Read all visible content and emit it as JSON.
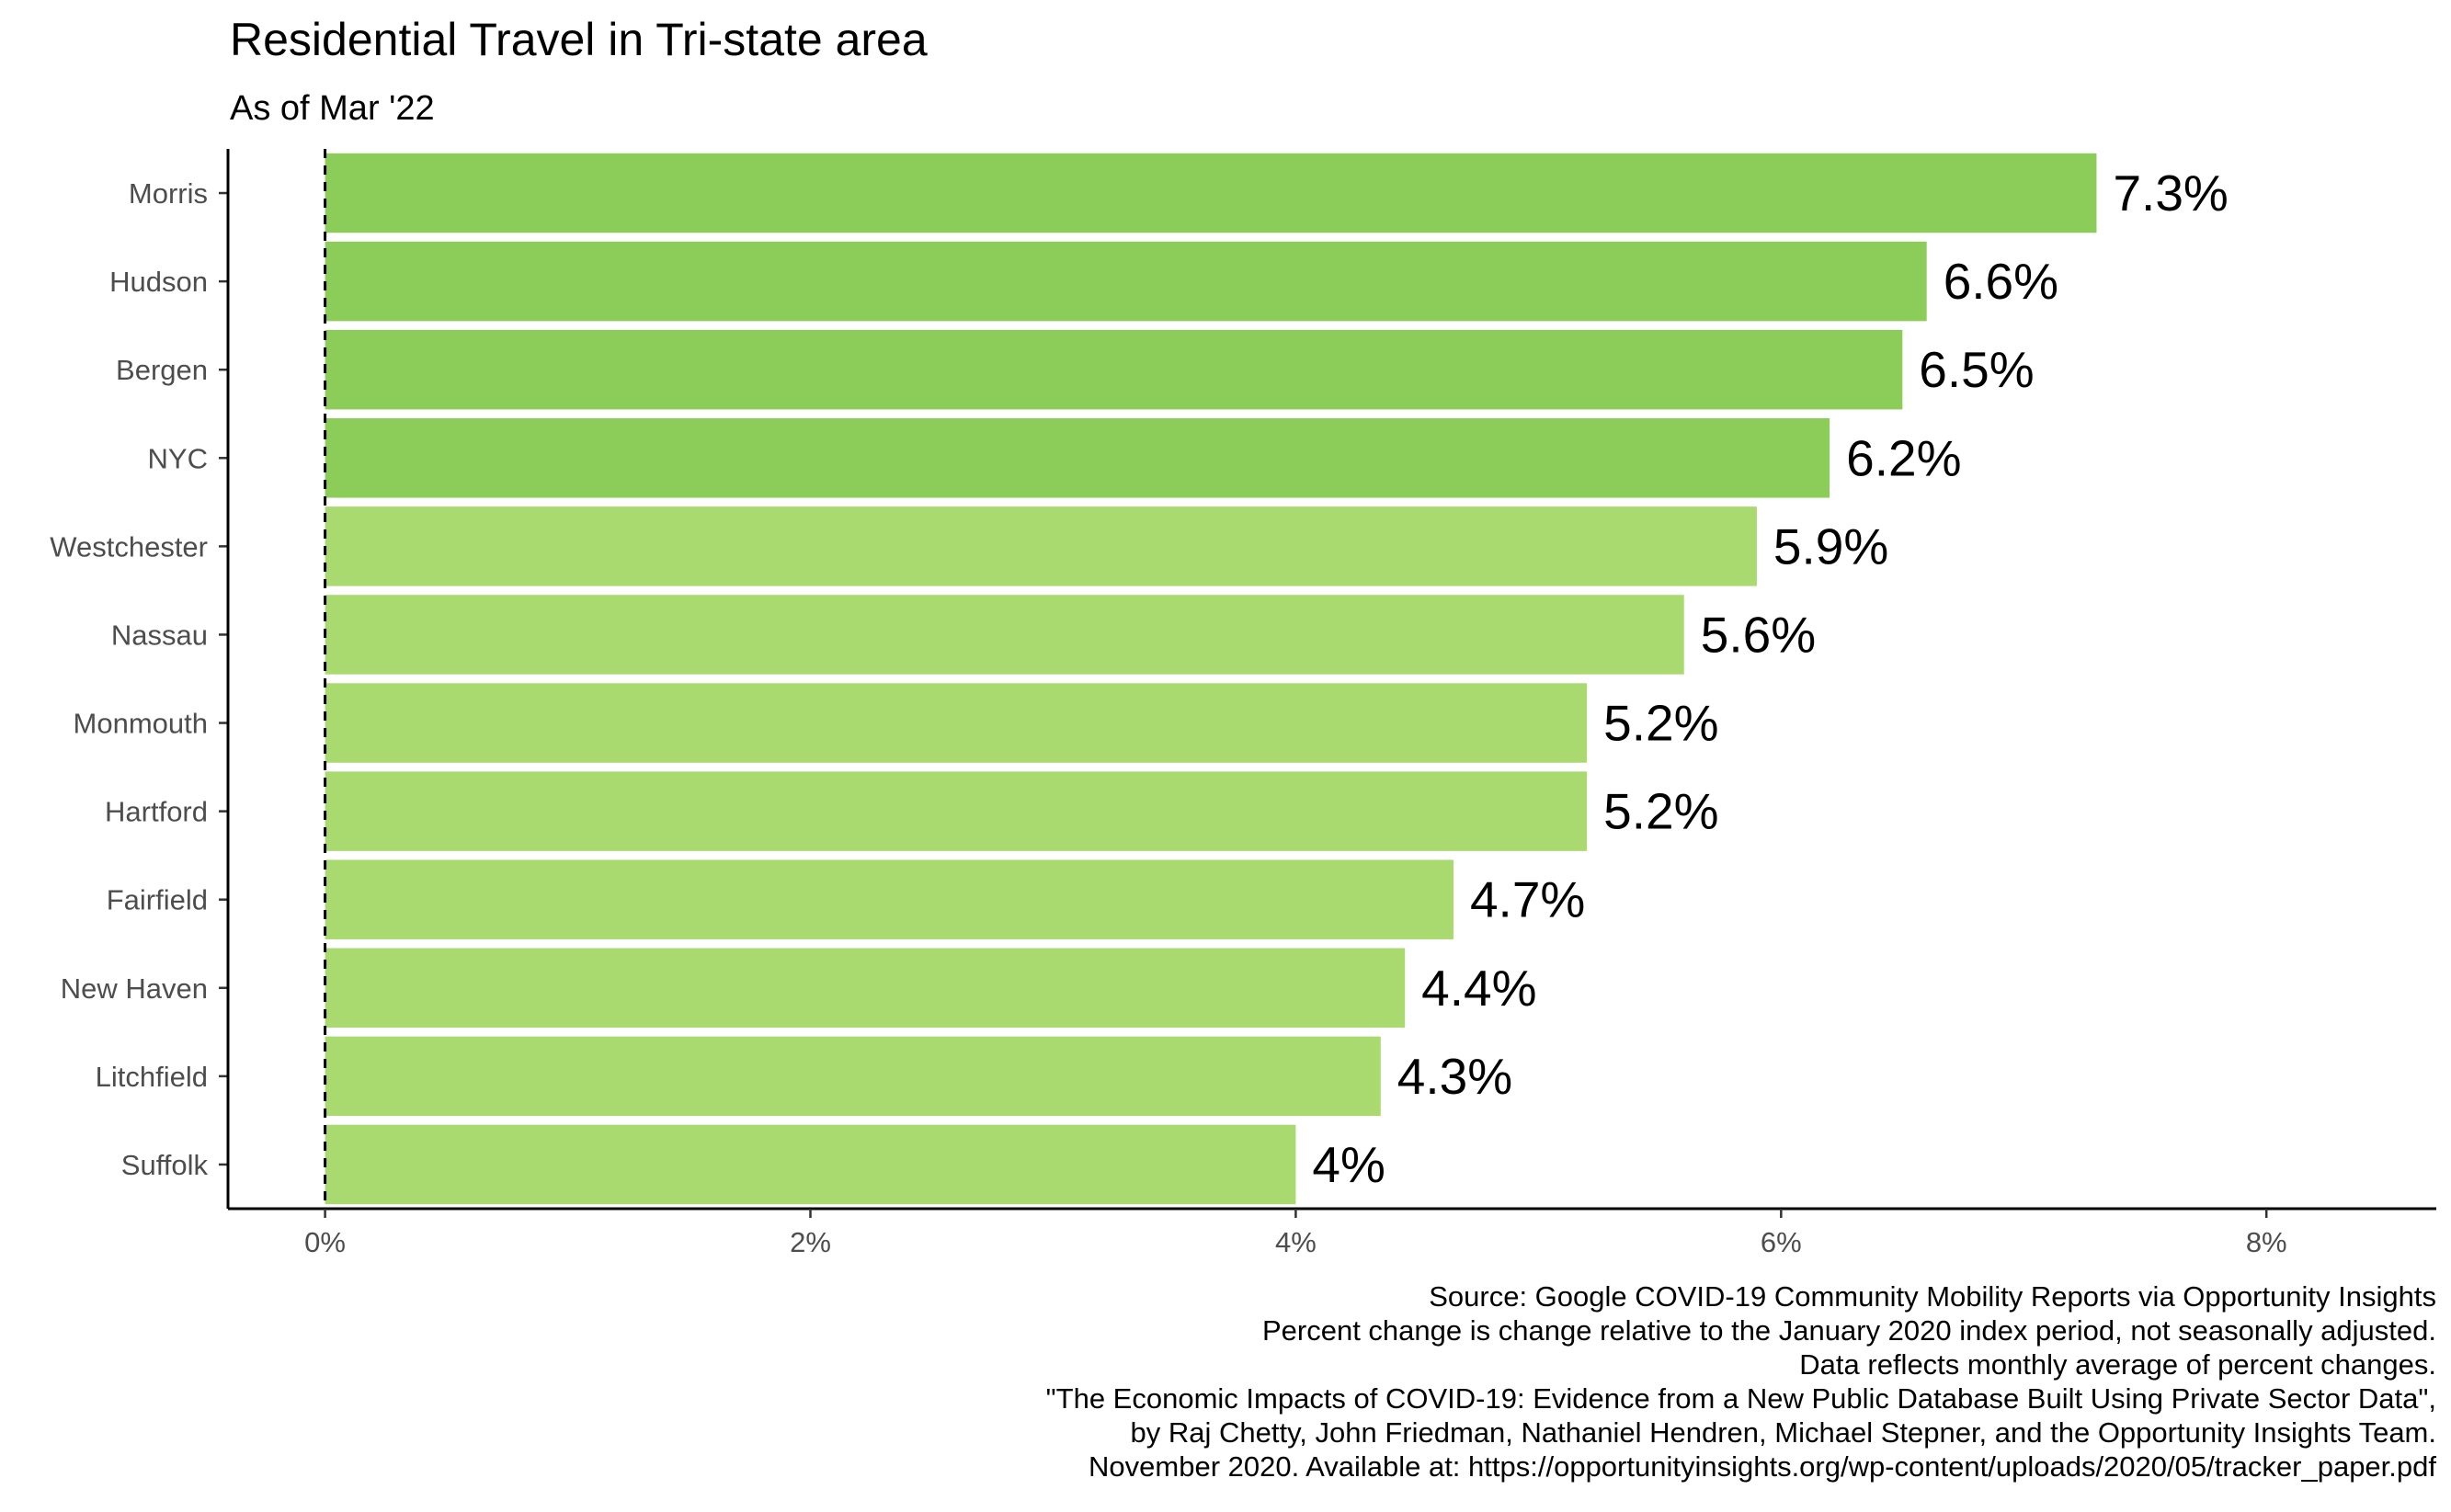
{
  "chart_data": {
    "type": "bar",
    "orientation": "horizontal",
    "title": "Residential Travel in Tri-state area",
    "subtitle": "As of Mar '22",
    "xlabel": "",
    "ylabel": "",
    "categories": [
      "Morris",
      "Hudson",
      "Bergen",
      "NYC",
      "Westchester",
      "Nassau",
      "Monmouth",
      "Hartford",
      "Fairfield",
      "New Haven",
      "Litchfield",
      "Suffolk"
    ],
    "values": [
      7.3,
      6.6,
      6.5,
      6.2,
      5.9,
      5.6,
      5.2,
      5.2,
      4.65,
      4.45,
      4.35,
      4.0
    ],
    "data_labels": [
      "7.3%",
      "6.6%",
      "6.5%",
      "6.2%",
      "5.9%",
      "5.6%",
      "5.2%",
      "5.2%",
      "4.7%",
      "4.4%",
      "4.3%",
      "4%"
    ],
    "xlim": [
      -0.4,
      8.7
    ],
    "x_ticks": [
      0,
      2,
      4,
      6,
      8
    ],
    "x_tick_labels": [
      "0%",
      "2%",
      "4%",
      "6%",
      "8%"
    ],
    "reference_line": {
      "x": 0,
      "style": "dashed"
    },
    "grid": false,
    "legend": "none",
    "colors": {
      "top_group": "#8ccd5a",
      "other": "#a8da6f"
    },
    "top_group_count": 4,
    "caption_lines": [
      "Source: Google COVID-19 Community Mobility Reports via Opportunity Insights",
      "Percent change is change relative to the January 2020 index period, not seasonally adjusted.",
      "Data reflects monthly average of percent changes.",
      "\"The Economic Impacts of COVID-19: Evidence from a New Public Database Built Using Private Sector Data\",",
      "by Raj Chetty, John Friedman, Nathaniel Hendren, Michael Stepner, and the Opportunity Insights Team.",
      "November 2020. Available at: https://opportunityinsights.org/wp-content/uploads/2020/05/tracker_paper.pdf"
    ]
  }
}
